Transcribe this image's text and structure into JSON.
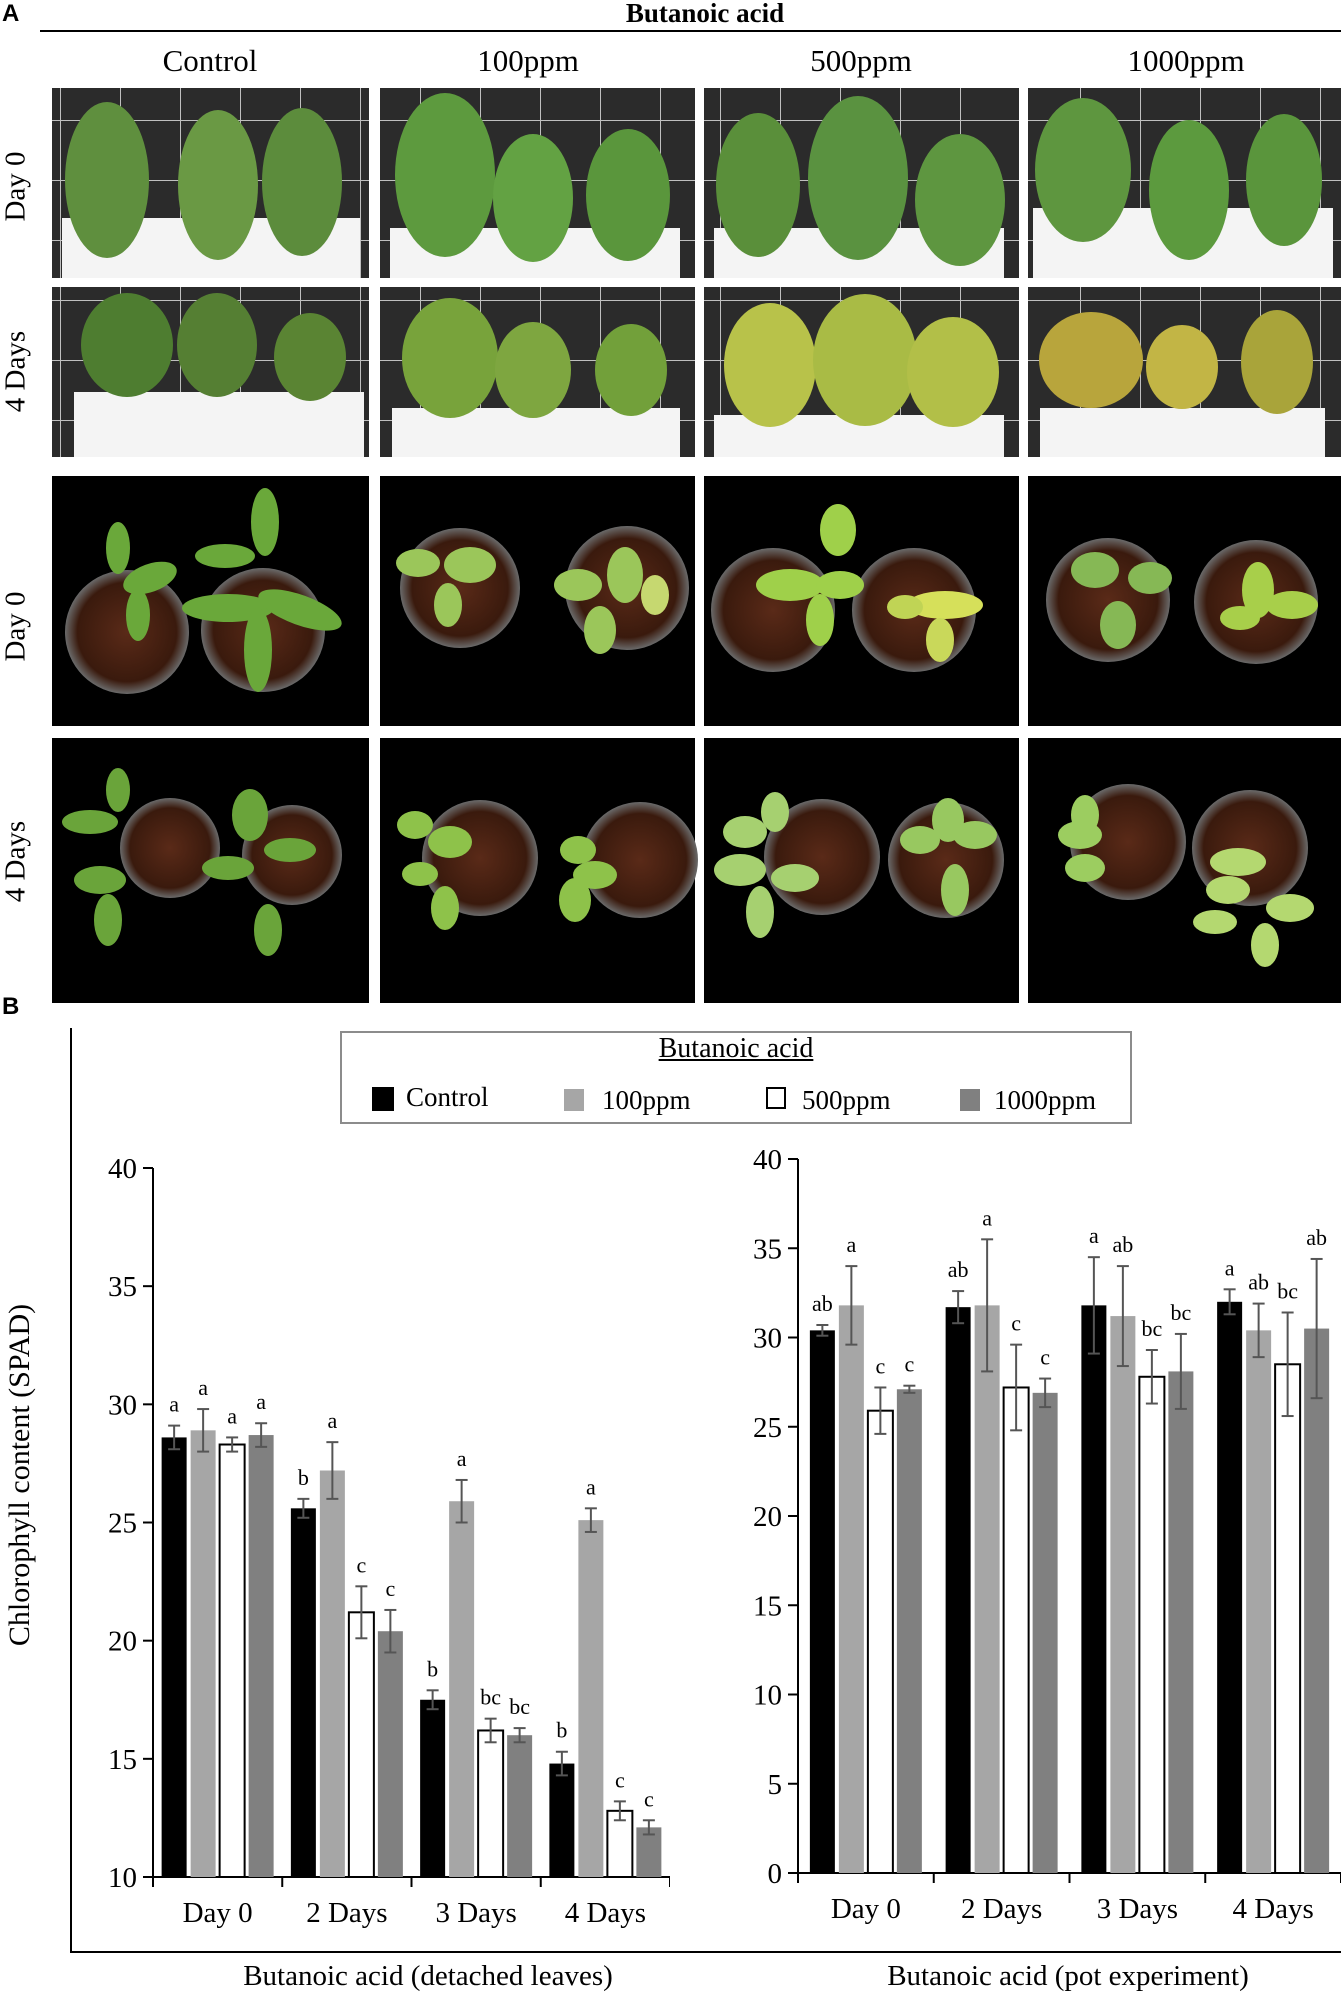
{
  "panel_a": {
    "letter": "A",
    "title": "Butanoic acid",
    "columns": [
      "Control",
      "100ppm",
      "500ppm",
      "1000ppm"
    ],
    "rows": [
      "Day 0",
      "4 Days",
      "Day 0",
      "4 Days"
    ]
  },
  "panel_b": {
    "letter": "B",
    "legend_title": "Butanoic acid",
    "legend": [
      {
        "label": "Control",
        "color": "#000000"
      },
      {
        "label": "100ppm",
        "color": "#a6a6a6"
      },
      {
        "label": "500ppm",
        "color": "#ffffff"
      },
      {
        "label": "1000ppm",
        "color": "#808080"
      }
    ],
    "ylabel": "Chlorophyll content (SPAD)"
  },
  "chart_data": [
    {
      "type": "bar",
      "title": "",
      "xlabel": "Butanoic acid (detached leaves)",
      "ylabel": "Chlorophyll content (SPAD)",
      "ylim": [
        10,
        40
      ],
      "yticks": [
        10,
        15,
        20,
        25,
        30,
        35,
        40
      ],
      "categories": [
        "Day 0",
        "2 Days",
        "3 Days",
        "4 Days"
      ],
      "series": [
        {
          "name": "Control",
          "values": [
            28.6,
            25.6,
            17.5,
            14.8
          ],
          "errors": [
            0.5,
            0.4,
            0.4,
            0.5
          ],
          "letters": [
            "a",
            "b",
            "b",
            "b"
          ]
        },
        {
          "name": "100ppm",
          "values": [
            28.9,
            27.2,
            25.9,
            25.1
          ],
          "errors": [
            0.9,
            1.2,
            0.9,
            0.5
          ],
          "letters": [
            "a",
            "a",
            "a",
            "a"
          ]
        },
        {
          "name": "500ppm",
          "values": [
            28.3,
            21.2,
            16.2,
            12.8
          ],
          "errors": [
            0.3,
            1.1,
            0.5,
            0.4
          ],
          "letters": [
            "a",
            "c",
            "bc",
            "c"
          ]
        },
        {
          "name": "1000ppm",
          "values": [
            28.7,
            20.4,
            16.0,
            12.1
          ],
          "errors": [
            0.5,
            0.9,
            0.3,
            0.3
          ],
          "letters": [
            "a",
            "c",
            "bc",
            "c"
          ]
        }
      ]
    },
    {
      "type": "bar",
      "title": "",
      "xlabel": "Butanoic acid (pot experiment)",
      "ylabel": "",
      "ylim": [
        0,
        40
      ],
      "yticks": [
        0,
        5,
        10,
        15,
        20,
        25,
        30,
        35,
        40
      ],
      "categories": [
        "Day 0",
        "2 Days",
        "3 Days",
        "4 Days"
      ],
      "series": [
        {
          "name": "Control",
          "values": [
            30.4,
            31.7,
            31.8,
            32.0
          ],
          "errors": [
            0.3,
            0.9,
            2.7,
            0.7
          ],
          "letters": [
            "ab",
            "ab",
            "a",
            "a"
          ]
        },
        {
          "name": "100ppm",
          "values": [
            31.8,
            31.8,
            31.2,
            30.4
          ],
          "errors": [
            2.2,
            3.7,
            2.8,
            1.5
          ],
          "letters": [
            "a",
            "a",
            "ab",
            "ab"
          ]
        },
        {
          "name": "500ppm",
          "values": [
            25.9,
            27.2,
            27.8,
            28.5
          ],
          "errors": [
            1.3,
            2.4,
            1.5,
            2.9
          ],
          "letters": [
            "c",
            "c",
            "bc",
            "bc"
          ]
        },
        {
          "name": "1000ppm",
          "values": [
            27.1,
            26.9,
            28.1,
            30.5
          ],
          "errors": [
            0.2,
            0.8,
            2.1,
            3.9
          ],
          "letters": [
            "c",
            "c",
            "bc",
            "ab"
          ]
        }
      ]
    }
  ]
}
